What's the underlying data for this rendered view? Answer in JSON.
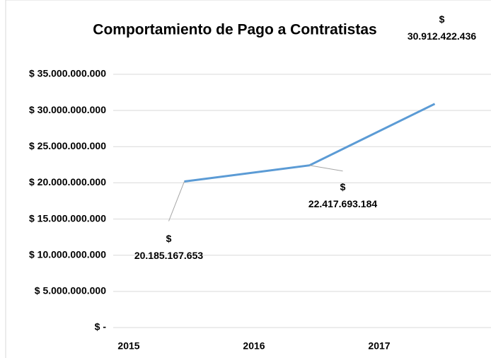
{
  "chart_data": {
    "type": "line",
    "title": "Comportamiento de Pago a Contratistas",
    "categories": [
      "2015",
      "2016",
      "2017"
    ],
    "series": [
      {
        "name": null,
        "color": "#5b9bd5",
        "values": [
          20185167653,
          22417693184,
          30912422436
        ],
        "value_labels": [
          "$ 20.185.167.653",
          "$ 22.417.693.184",
          "$ 30.912.422.436"
        ]
      }
    ],
    "ylim": [
      0,
      35000000000
    ],
    "yticks": [
      {
        "value": 0,
        "label": "$ -"
      },
      {
        "value": 5000000000,
        "label": "$ 5.000.000.000"
      },
      {
        "value": 10000000000,
        "label": "$ 10.000.000.000"
      },
      {
        "value": 15000000000,
        "label": "$ 15.000.000.000"
      },
      {
        "value": 20000000000,
        "label": "$ 20.000.000.000"
      },
      {
        "value": 25000000000,
        "label": "$ 25.000.000.000"
      },
      {
        "value": 30000000000,
        "label": "$ 30.000.000.000"
      },
      {
        "value": 35000000000,
        "label": "$ 35.000.000.000"
      }
    ],
    "grid": true
  }
}
